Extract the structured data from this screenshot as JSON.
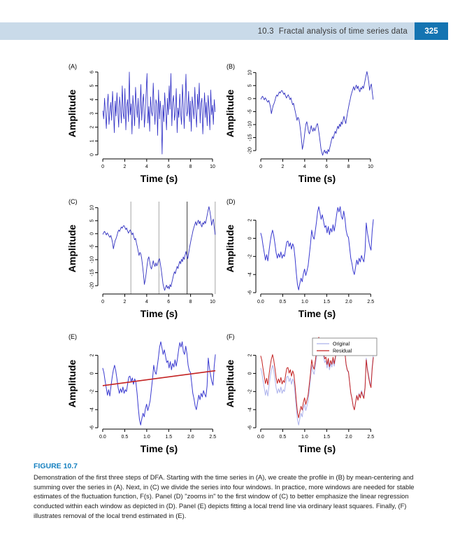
{
  "header": {
    "section_number": "10.3",
    "section_title": "Fractal analysis of time series data",
    "page_number": "325",
    "band_color": "#c9dae9",
    "page_box_color": "#1474b2"
  },
  "figure": {
    "label": "FIGURE 10.7",
    "label_color": "#1580c0",
    "caption": "Demonstration of the first three steps of DFA. Starting with the time series in (A), we create the profile in (B) by mean-centering and summing over the series in (A). Next, in (C) we divide the series into four windows. In practice, more windows are needed for stable estimates of the fluctuation function, F(s). Panel (D) \"zooms in\" to the first window of (C) to better emphasize the linear regression conducted within each window as depicted in (D). Panel (E) depicts fitting a local trend line via ordinary least squares. Finally, (F) illustrates removal of the local trend estimated in (E)."
  },
  "chart_data": [
    {
      "id": "A",
      "type": "line",
      "panel_label": "(A)",
      "xlabel": "Time (s)",
      "ylabel": "Amplitude",
      "x_range": [
        0,
        10.24
      ],
      "xlim": [
        -0.45,
        10.7
      ],
      "ylim": [
        -0.3,
        6.3
      ],
      "x_ticks": [
        0,
        2,
        4,
        6,
        8,
        10
      ],
      "x_tick_labels": [
        "0",
        "2",
        "4",
        "6",
        "8",
        "10"
      ],
      "y_ticks": [
        0,
        1,
        2,
        3,
        4,
        5,
        6
      ],
      "y_tick_labels": [
        "0",
        "1",
        "2",
        "3",
        "4",
        "5",
        "6"
      ],
      "series": [
        {
          "name": "white-noise-signal",
          "color": "#2b2bc4",
          "width": 0.8,
          "values": [
            3.2,
            2.6,
            4.1,
            3.0,
            1.9,
            3.6,
            4.4,
            2.2,
            3.1,
            3.8,
            2.5,
            4.6,
            3.3,
            1.6,
            3.9,
            2.8,
            4.5,
            3.1,
            2.0,
            4.2,
            3.4,
            2.3,
            5.0,
            3.0,
            2.6,
            4.8,
            1.8,
            3.5,
            4.0,
            2.4,
            6.0,
            2.9,
            3.7,
            1.5,
            4.3,
            3.2,
            2.1,
            4.9,
            3.6,
            2.7,
            4.1,
            1.9,
            3.3,
            5.1,
            2.5,
            3.8,
            4.4,
            2.0,
            3.0,
            4.6,
            5.9,
            2.3,
            3.5,
            1.7,
            4.2,
            3.1,
            2.8,
            5.2,
            3.4,
            2.2,
            4.0,
            3.7,
            1.4,
            4.7,
            2.6,
            3.9,
            3.0,
            0.05,
            3.6,
            2.4,
            4.5,
            3.2,
            1.8,
            4.1,
            2.9,
            5.0,
            3.3,
            5.9,
            2.1,
            3.8,
            4.3,
            2.5,
            3.1,
            4.8,
            1.6,
            3.4,
            2.7,
            4.4,
            3.0,
            2.2,
            5.1,
            3.6,
            1.9,
            4.0,
            5.85,
            2.8,
            3.2,
            4.6,
            2.4,
            3.9,
            1.7,
            4.2,
            3.5,
            2.6,
            4.9,
            3.1,
            2.0,
            4.4,
            3.3,
            5.2,
            2.3,
            3.7,
            4.1,
            1.5,
            3.0,
            4.5,
            2.7,
            3.8,
            2.1,
            4.3,
            3.4,
            1.8,
            4.7,
            2.9,
            3.6,
            2.2,
            4.0,
            3.1
          ]
        }
      ]
    },
    {
      "id": "B",
      "type": "line",
      "panel_label": "(B)",
      "xlabel": "Time (s)",
      "ylabel": "Amplitude",
      "x_range": [
        0,
        10.24
      ],
      "xlim": [
        -0.45,
        10.7
      ],
      "ylim": [
        -23.2,
        11.8
      ],
      "x_ticks": [
        0,
        2,
        4,
        6,
        8,
        10
      ],
      "x_tick_labels": [
        "0",
        "2",
        "4",
        "6",
        "8",
        "10"
      ],
      "y_ticks": [
        -20,
        -15,
        -10,
        -5,
        0,
        5,
        10
      ],
      "y_tick_labels": [
        "-20",
        "-15",
        "-10",
        "-5",
        "0",
        "5",
        "10"
      ],
      "series": [
        {
          "name": "profile",
          "color": "#3232c0",
          "width": 0.9,
          "values": [
            -0.3,
            0.4,
            0.9,
            0.2,
            -0.5,
            0.3,
            -0.2,
            -0.9,
            -1.4,
            -0.7,
            -1.8,
            -3.5,
            -5.8,
            -4.2,
            -2.6,
            -1.9,
            -0.8,
            0.6,
            1.4,
            0.9,
            1.8,
            2.6,
            2.1,
            2.9,
            3.1,
            2.4,
            1.6,
            2.2,
            1.0,
            0.2,
            0.9,
            1.5,
            0.6,
            -0.4,
            0.3,
            -1.2,
            -2.4,
            -1.8,
            -3.6,
            -5.0,
            -6.8,
            -8.4,
            -7.2,
            -7.8,
            -9.6,
            -12.5,
            -15.8,
            -19.5,
            -17.8,
            -15.2,
            -12.4,
            -9.8,
            -8.9,
            -10.6,
            -12.8,
            -13.6,
            -12.2,
            -10.4,
            -11.8,
            -12.6,
            -11.2,
            -12.4,
            -11.6,
            -10.2,
            -9.6,
            -11.4,
            -13.8,
            -16.5,
            -19.2,
            -20.8,
            -21.8,
            -20.6,
            -19.8,
            -21.0,
            -20.2,
            -21.3,
            -19.6,
            -20.4,
            -18.8,
            -17.4,
            -15.8,
            -14.6,
            -15.4,
            -13.8,
            -12.6,
            -13.4,
            -11.8,
            -10.6,
            -11.6,
            -9.8,
            -10.8,
            -8.9,
            -9.9,
            -8.2,
            -6.8,
            -8.4,
            -9.6,
            -7.6,
            -5.4,
            -3.8,
            -1.9,
            -0.4,
            1.2,
            2.4,
            3.6,
            4.6,
            3.2,
            4.4,
            5.2,
            3.8,
            4.8,
            3.4,
            2.6,
            4.2,
            3.6,
            4.8,
            3.9,
            5.4,
            7.2,
            9.0,
            10.4,
            8.6,
            6.4,
            3.2,
            4.8,
            5.6,
            2.4,
            -0.4
          ]
        }
      ]
    },
    {
      "id": "C",
      "type": "line",
      "panel_label": "(C)",
      "xlabel": "Time (s)",
      "ylabel": "Amplitude",
      "x_range": [
        0,
        10.24
      ],
      "xlim": [
        -0.45,
        10.7
      ],
      "ylim": [
        -23.2,
        11.8
      ],
      "x_ticks": [
        0,
        2,
        4,
        6,
        8,
        10
      ],
      "x_tick_labels": [
        "0",
        "2",
        "4",
        "6",
        "8",
        "10"
      ],
      "y_ticks": [
        -20,
        -15,
        -10,
        -5,
        0,
        5,
        10
      ],
      "y_tick_labels": [
        "-20",
        "-15",
        "-10",
        "-5",
        "0",
        "5",
        "10"
      ],
      "v_lines": [
        {
          "x": 2.56,
          "color": "#b4b4b4"
        },
        {
          "x": 5.12,
          "color": "#b4b4b4"
        },
        {
          "x": 7.68,
          "color": "#5a5a5a"
        },
        {
          "x": 10.24,
          "color": "#b4b4b4"
        }
      ],
      "series": [
        {
          "name": "profile-with-windows",
          "color": "#3232c0",
          "width": 0.9,
          "values": [
            -0.3,
            0.4,
            0.9,
            0.2,
            -0.5,
            0.3,
            -0.2,
            -0.9,
            -1.4,
            -0.7,
            -1.8,
            -3.5,
            -5.8,
            -4.2,
            -2.6,
            -1.9,
            -0.8,
            0.6,
            1.4,
            0.9,
            1.8,
            2.6,
            2.1,
            2.9,
            3.1,
            2.4,
            1.6,
            2.2,
            1.0,
            0.2,
            0.9,
            1.5,
            0.6,
            -0.4,
            0.3,
            -1.2,
            -2.4,
            -1.8,
            -3.6,
            -5.0,
            -6.8,
            -8.4,
            -7.2,
            -7.8,
            -9.6,
            -12.5,
            -15.8,
            -19.5,
            -17.8,
            -15.2,
            -12.4,
            -9.8,
            -8.9,
            -10.6,
            -12.8,
            -13.6,
            -12.2,
            -10.4,
            -11.8,
            -12.6,
            -11.2,
            -12.4,
            -11.6,
            -10.2,
            -9.6,
            -11.4,
            -13.8,
            -16.5,
            -19.2,
            -20.8,
            -21.8,
            -20.6,
            -19.8,
            -21.0,
            -20.2,
            -21.3,
            -19.6,
            -20.4,
            -18.8,
            -17.4,
            -15.8,
            -14.6,
            -15.4,
            -13.8,
            -12.6,
            -13.4,
            -11.8,
            -10.6,
            -11.6,
            -9.8,
            -10.8,
            -8.9,
            -9.9,
            -8.2,
            -6.8,
            -8.4,
            -9.6,
            -7.6,
            -5.4,
            -3.8,
            -1.9,
            -0.4,
            1.2,
            2.4,
            3.6,
            4.6,
            3.2,
            4.4,
            5.2,
            3.8,
            4.8,
            3.4,
            2.6,
            4.2,
            3.6,
            4.8,
            3.9,
            5.4,
            7.2,
            9.0,
            10.4,
            8.6,
            6.4,
            3.2,
            4.8,
            5.6,
            2.4,
            -0.4
          ]
        }
      ]
    },
    {
      "id": "D",
      "type": "line",
      "panel_label": "(D)",
      "xlabel": "Time (s)",
      "ylabel": "Amplitude",
      "x_range": [
        0,
        2.56
      ],
      "xlim": [
        -0.11,
        2.67
      ],
      "ylim": [
        -6.15,
        3.9
      ],
      "x_ticks": [
        0,
        0.5,
        1,
        1.5,
        2,
        2.5
      ],
      "x_tick_labels": [
        "0.0",
        "0.5",
        "1.0",
        "1.5",
        "2.0",
        "2.5"
      ],
      "y_ticks": [
        -6,
        -4,
        -2,
        0,
        2
      ],
      "y_tick_labels": [
        "-6",
        "-4",
        "-2",
        "0",
        "2"
      ],
      "series": [
        {
          "name": "first-window",
          "color": "#3a3ad0",
          "width": 1.0,
          "values": [
            0.6,
            0.1,
            -0.8,
            -1.6,
            -2.4,
            -1.8,
            -2.5,
            -1.4,
            -0.4,
            0.4,
            0.9,
            0.3,
            -0.6,
            -1.6,
            -2.2,
            -1.7,
            -2.1,
            -1.5,
            -2.2,
            -1.8,
            -2.0,
            -1.2,
            -0.4,
            -0.3,
            -0.9,
            -0.5,
            -1.2,
            -0.6,
            -1.0,
            -2.2,
            -3.8,
            -5.1,
            -5.7,
            -5.0,
            -4.4,
            -4.8,
            -3.9,
            -3.4,
            -4.1,
            -3.6,
            -3.0,
            -1.8,
            -0.6,
            0.9,
            0.2,
            -0.1,
            0.8,
            1.8,
            2.9,
            3.5,
            2.8,
            2.1,
            2.6,
            1.9,
            1.2,
            1.4,
            0.6,
            1.3,
            0.4,
            1.1,
            0.7,
            1.5,
            0.8,
            1.6,
            2.6,
            3.4,
            2.9,
            3.5,
            2.4,
            2.1,
            3.0,
            2.2,
            0.9,
            0.3,
            0.1,
            -1.0,
            -2.2,
            -2.8,
            -3.6,
            -4.0,
            -3.2,
            -2.4,
            -2.9,
            -2.2,
            -2.6,
            -1.9,
            -2.3,
            -2.6,
            -1.4,
            1.7,
            0.6,
            -0.2,
            -0.9,
            -1.3,
            0.8,
            2.1
          ]
        }
      ]
    },
    {
      "id": "E",
      "type": "line",
      "panel_label": "(E)",
      "xlabel": "Time (s)",
      "ylabel": "Amplitude",
      "x_range": [
        0,
        2.56
      ],
      "xlim": [
        -0.11,
        2.67
      ],
      "ylim": [
        -6.15,
        3.9
      ],
      "x_ticks": [
        0,
        0.5,
        1,
        1.5,
        2,
        2.5
      ],
      "x_tick_labels": [
        "0.0",
        "0.5",
        "1.0",
        "1.5",
        "2.0",
        "2.5"
      ],
      "y_ticks": [
        -6,
        -4,
        -2,
        0,
        2
      ],
      "y_tick_labels": [
        "-6",
        "-4",
        "-2",
        "0",
        "2"
      ],
      "trend": {
        "intercept": -1.35,
        "slope": 0.645,
        "color": "#c32222"
      },
      "show_trend_line": true,
      "series": [
        {
          "name": "first-window",
          "color": "#3a3ad0",
          "width": 1.0,
          "values": [
            0.6,
            0.1,
            -0.8,
            -1.6,
            -2.4,
            -1.8,
            -2.5,
            -1.4,
            -0.4,
            0.4,
            0.9,
            0.3,
            -0.6,
            -1.6,
            -2.2,
            -1.7,
            -2.1,
            -1.5,
            -2.2,
            -1.8,
            -2.0,
            -1.2,
            -0.4,
            -0.3,
            -0.9,
            -0.5,
            -1.2,
            -0.6,
            -1.0,
            -2.2,
            -3.8,
            -5.1,
            -5.7,
            -5.0,
            -4.4,
            -4.8,
            -3.9,
            -3.4,
            -4.1,
            -3.6,
            -3.0,
            -1.8,
            -0.6,
            0.9,
            0.2,
            -0.1,
            0.8,
            1.8,
            2.9,
            3.5,
            2.8,
            2.1,
            2.6,
            1.9,
            1.2,
            1.4,
            0.6,
            1.3,
            0.4,
            1.1,
            0.7,
            1.5,
            0.8,
            1.6,
            2.6,
            3.4,
            2.9,
            3.5,
            2.4,
            2.1,
            3.0,
            2.2,
            0.9,
            0.3,
            0.1,
            -1.0,
            -2.2,
            -2.8,
            -3.6,
            -4.0,
            -3.2,
            -2.4,
            -2.9,
            -2.2,
            -2.6,
            -1.9,
            -2.3,
            -2.6,
            -1.4,
            1.7,
            0.6,
            -0.2,
            -0.9,
            -1.3,
            0.8,
            2.1
          ]
        }
      ]
    },
    {
      "id": "F",
      "type": "line",
      "panel_label": "(F)",
      "xlabel": "Time (s)",
      "ylabel": "Amplitude",
      "x_range": [
        0,
        2.56
      ],
      "xlim": [
        -0.11,
        2.67
      ],
      "ylim": [
        -6.15,
        3.9
      ],
      "x_ticks": [
        0,
        0.5,
        1,
        1.5,
        2,
        2.5
      ],
      "x_tick_labels": [
        "0.0",
        "0.5",
        "1.0",
        "1.5",
        "2.0",
        "2.5"
      ],
      "y_ticks": [
        -6,
        -4,
        -2,
        0,
        2
      ],
      "y_tick_labels": [
        "-6",
        "-4",
        "-2",
        "0",
        "2"
      ],
      "trend": {
        "intercept": -1.35,
        "slope": 0.645,
        "color": "#c32222"
      },
      "show_trend_line": false,
      "legend": {
        "position": "top-right",
        "entries": [
          {
            "label": "Original",
            "color": "#acb2ec"
          },
          {
            "label": "Residual",
            "color": "#c32222"
          }
        ]
      },
      "series": [
        {
          "name": "Original",
          "color": "#acb2ec",
          "width": 1.0,
          "values": [
            0.6,
            0.1,
            -0.8,
            -1.6,
            -2.4,
            -1.8,
            -2.5,
            -1.4,
            -0.4,
            0.4,
            0.9,
            0.3,
            -0.6,
            -1.6,
            -2.2,
            -1.7,
            -2.1,
            -1.5,
            -2.2,
            -1.8,
            -2.0,
            -1.2,
            -0.4,
            -0.3,
            -0.9,
            -0.5,
            -1.2,
            -0.6,
            -1.0,
            -2.2,
            -3.8,
            -5.1,
            -5.7,
            -5.0,
            -4.4,
            -4.8,
            -3.9,
            -3.4,
            -4.1,
            -3.6,
            -3.0,
            -1.8,
            -0.6,
            0.9,
            0.2,
            -0.1,
            0.8,
            1.8,
            2.9,
            3.5,
            2.8,
            2.1,
            2.6,
            1.9,
            1.2,
            1.4,
            0.6,
            1.3,
            0.4,
            1.1,
            0.7,
            1.5,
            0.8,
            1.6,
            2.6,
            3.4,
            2.9,
            3.5,
            2.4,
            2.1,
            3.0,
            2.2,
            0.9,
            0.3,
            0.1,
            -1.0,
            -2.2,
            -2.8,
            -3.6,
            -4.0,
            -3.2,
            -2.4,
            -2.9,
            -2.2,
            -2.6,
            -1.9,
            -2.3,
            -2.6,
            -1.4,
            1.7,
            0.6,
            -0.2,
            -0.9,
            -1.3,
            0.8,
            2.1
          ]
        },
        {
          "name": "Residual",
          "color": "#c32222",
          "width": 1.0,
          "derive": "residual"
        }
      ]
    }
  ]
}
